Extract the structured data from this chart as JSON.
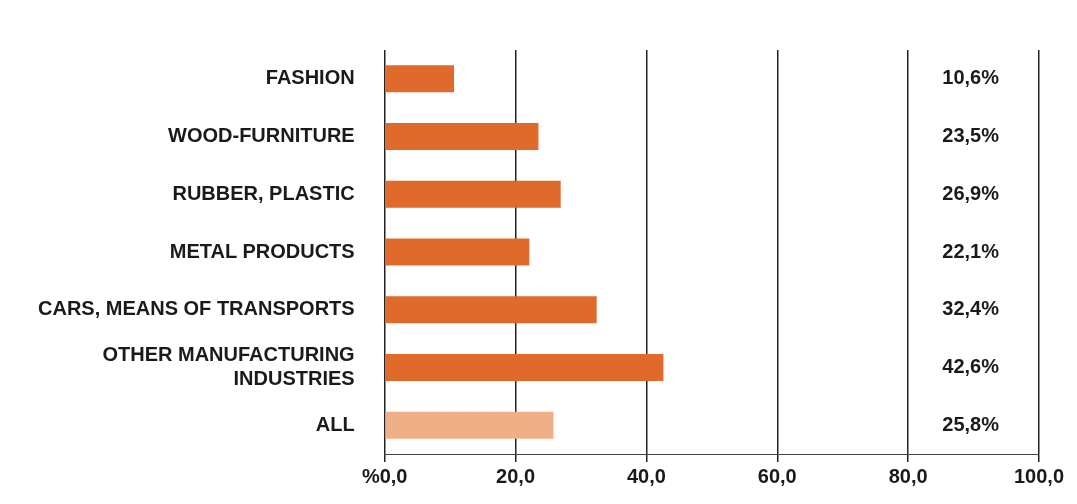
{
  "chart_data": {
    "type": "bar",
    "orientation": "horizontal",
    "categories": [
      "FASHION",
      "WOOD-FURNITURE",
      "RUBBER, PLASTIC",
      "METAL PRODUCTS",
      "CARS, MEANS OF TRANSPORTS",
      "OTHER MANUFACTURING INDUSTRIES",
      "ALL"
    ],
    "values": [
      10.6,
      23.5,
      26.9,
      22.1,
      32.4,
      42.6,
      25.8
    ],
    "colors": [
      "#e06a2b",
      "#e06a2b",
      "#e06a2b",
      "#e06a2b",
      "#e06a2b",
      "#e06a2b",
      "#f0b087"
    ],
    "value_labels": [
      "10,6%",
      "23,5%",
      "26,9%",
      "22,1%",
      "32,4%",
      "42,6%",
      "25,8%"
    ],
    "xlim": [
      0,
      100
    ],
    "xticks": [
      {
        "value": 0,
        "label": "%0,0"
      },
      {
        "value": 20,
        "label": "20,0"
      },
      {
        "value": 40,
        "label": "40,0"
      },
      {
        "value": 60,
        "label": "60,0"
      },
      {
        "value": 80,
        "label": "80,0"
      },
      {
        "value": 100,
        "label": "100,0"
      }
    ],
    "grid": "x",
    "legend": false
  }
}
